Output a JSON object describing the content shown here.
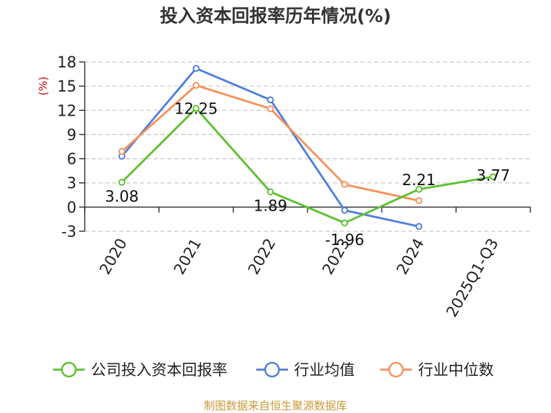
{
  "chart_data": {
    "type": "line",
    "title": "投入资本回报率历年情况(%)",
    "ylabel": "(%)",
    "categories": [
      "2020",
      "2021",
      "2022",
      "2023",
      "2024",
      "2025Q1-Q3"
    ],
    "ylim": [
      -3,
      18
    ],
    "yticks": [
      -3,
      0,
      3,
      6,
      9,
      12,
      15,
      18
    ],
    "grid": true,
    "legend_position": "bottom",
    "series": [
      {
        "name": "公司投入资本回报率",
        "color": "#5ec02f",
        "values": [
          3.08,
          12.25,
          1.89,
          -1.96,
          2.21,
          3.77
        ],
        "labels": [
          "3.08",
          "12.25",
          "1.89",
          "-1.96",
          "2.21",
          "3.77"
        ]
      },
      {
        "name": "行业均值",
        "color": "#4f7fdb",
        "values": [
          6.3,
          17.2,
          13.3,
          -0.4,
          -2.4,
          null
        ]
      },
      {
        "name": "行业中位数",
        "color": "#f6925b",
        "values": [
          6.9,
          15.1,
          12.2,
          2.8,
          0.8,
          null
        ]
      }
    ]
  },
  "source": "制图数据来自恒生聚源数据库"
}
